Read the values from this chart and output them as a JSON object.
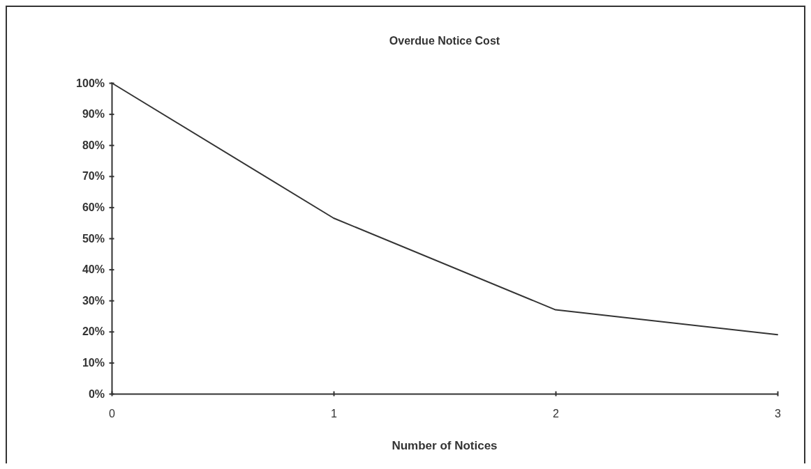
{
  "chart_data": {
    "type": "line",
    "title": "Overdue Notice Cost",
    "xlabel": "Number of Notices",
    "x": [
      0,
      1,
      2,
      3
    ],
    "series": [
      {
        "color": "#333333",
        "values": [
          100,
          56.5,
          27,
          19
        ]
      }
    ],
    "xlim": [
      0,
      3
    ],
    "xticks": [
      0,
      1,
      2,
      3
    ],
    "ylim": [
      0,
      100
    ],
    "yticks": [
      {
        "value": 0,
        "label": "0%"
      },
      {
        "value": 10,
        "label": "10%"
      },
      {
        "value": 20,
        "label": "20%"
      },
      {
        "value": 30,
        "label": "30%"
      },
      {
        "value": 40,
        "label": "40%"
      },
      {
        "value": 50,
        "label": "50%"
      },
      {
        "value": 60,
        "label": "60%"
      },
      {
        "value": 70,
        "label": "70%"
      },
      {
        "value": 80,
        "label": "80%"
      },
      {
        "value": 90,
        "label": "90%"
      },
      {
        "value": 100,
        "label": "100%"
      }
    ],
    "marker": "none",
    "line_style": "solid"
  }
}
